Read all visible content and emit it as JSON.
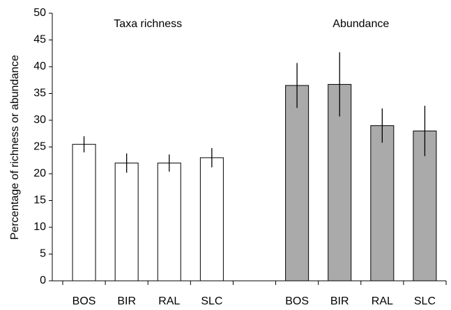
{
  "chart_data": {
    "type": "bar",
    "ylabel": "Percentage of richness or abundance",
    "categories": [
      "BOS",
      "BIR",
      "RAL",
      "SLC",
      null,
      "BOS",
      "BIR",
      "RAL",
      "SLC"
    ],
    "series": [
      {
        "name": "Taxa richness",
        "color": "#ffffff",
        "values": [
          25.5,
          22,
          22,
          23,
          null,
          null,
          null,
          null,
          null
        ],
        "errors": [
          1.5,
          1.8,
          1.6,
          1.8,
          null,
          null,
          null,
          null,
          null
        ]
      },
      {
        "name": "Abundance",
        "color": "#aaaaaa",
        "values": [
          null,
          null,
          null,
          null,
          null,
          36.5,
          36.7,
          29,
          28
        ],
        "errors": [
          null,
          null,
          null,
          null,
          null,
          4.2,
          6,
          3.2,
          4.7
        ]
      }
    ],
    "ylim": [
      0,
      50
    ],
    "yticks": [
      0,
      5,
      10,
      15,
      20,
      25,
      30,
      35,
      40,
      45,
      50
    ]
  }
}
